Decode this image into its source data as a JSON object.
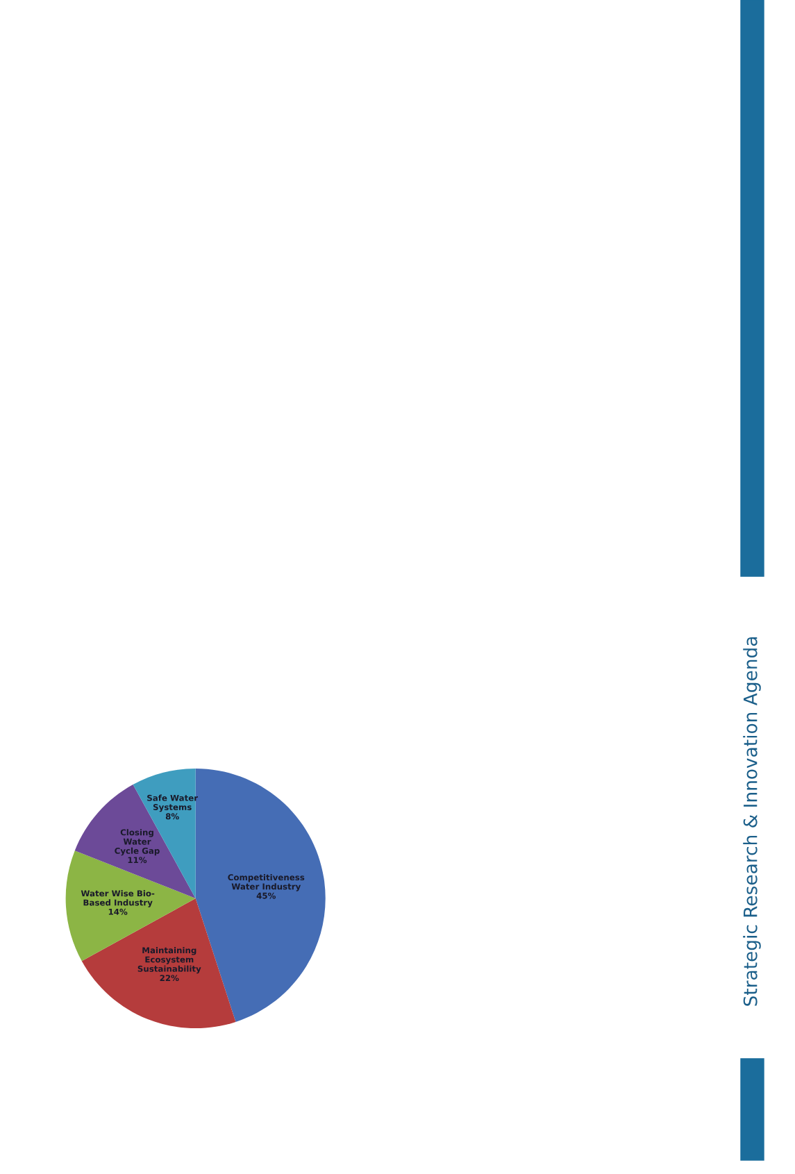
{
  "chart_data": {
    "type": "pie",
    "categories": [
      "Competitiveness\nWater Industry",
      "Maintaining\nEcosystem\nSustainability",
      "Water Wise Bio-\nBased Industry",
      "Closing\nWater\nCycle Gap",
      "Safe Water\nSystems"
    ],
    "values": [
      45,
      22,
      14,
      11,
      8
    ],
    "colors": [
      "#456db5",
      "#b53c3c",
      "#8cb545",
      "#6c4a98",
      "#3f9dbf"
    ],
    "value_labels": [
      "45%",
      "22%",
      "14%",
      "11%",
      "8%"
    ],
    "annotations": [
      "Strategic Research & Innovation Agenda"
    ]
  }
}
